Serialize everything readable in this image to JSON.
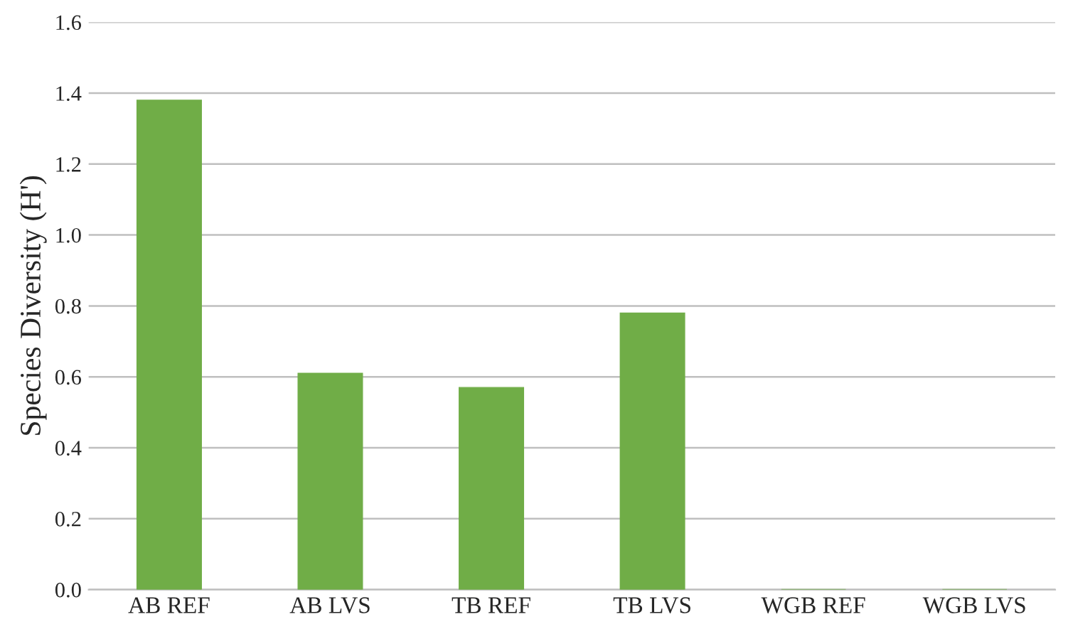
{
  "chart_data": {
    "type": "bar",
    "ylabel": "Species Diversity (H')",
    "categories": [
      "AB REF",
      "AB LVS",
      "TB REF",
      "TB LVS",
      "WGB REF",
      "WGB LVS"
    ],
    "values": [
      1.38,
      0.61,
      0.57,
      0.78,
      0,
      0
    ],
    "color": "#70ad47",
    "ylim": [
      0,
      1.6
    ],
    "yticks": [
      {
        "value": 0,
        "label": "0.0"
      },
      {
        "value": 0.2,
        "label": "0.2"
      },
      {
        "value": 0.4,
        "label": "0.4"
      },
      {
        "value": 0.6,
        "label": "0.6"
      },
      {
        "value": 0.8,
        "label": "0.8"
      },
      {
        "value": 1.0,
        "label": "1.0"
      },
      {
        "value": 1.2,
        "label": "1.2"
      },
      {
        "value": 1.4,
        "label": "1.4"
      },
      {
        "value": 1.6,
        "label": "1.6"
      }
    ],
    "grid": "y",
    "legend": false
  }
}
